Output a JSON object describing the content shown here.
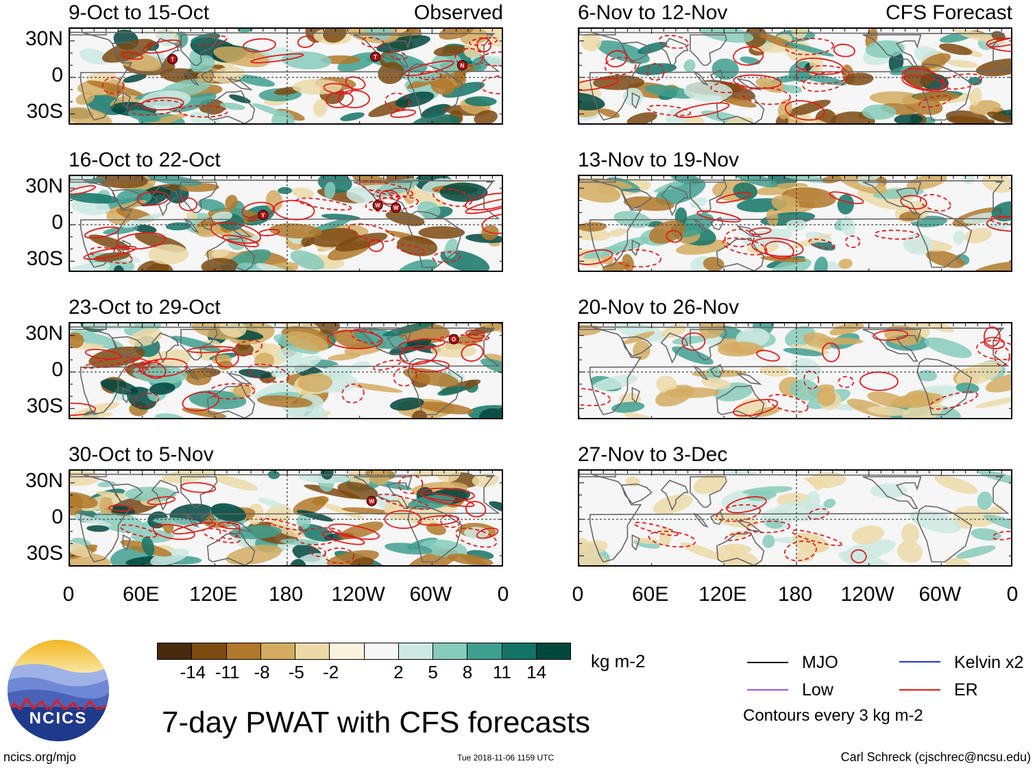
{
  "panels": [
    {
      "title": "9-Oct to 15-Oct",
      "tag": "Observed",
      "storms": [
        {
          "label": "T",
          "lon": 85,
          "lat": 15
        },
        {
          "label": "T",
          "lon": 253,
          "lat": 17
        },
        {
          "label": "N",
          "lon": 325,
          "lat": 10
        }
      ]
    },
    {
      "title": "16-Oct to 22-Oct",
      "tag": "",
      "storms": [
        {
          "label": "Y",
          "lon": 160,
          "lat": 8
        },
        {
          "label": "W",
          "lon": 255,
          "lat": 16
        },
        {
          "label": "W",
          "lon": 270,
          "lat": 14
        }
      ]
    },
    {
      "title": "23-Oct to 29-Oct",
      "tag": "",
      "storms": [
        {
          "label": "O",
          "lon": 318,
          "lat": 27
        }
      ]
    },
    {
      "title": "30-Oct to 5-Nov",
      "tag": "",
      "storms": [
        {
          "label": "W",
          "lon": 250,
          "lat": 15
        }
      ]
    },
    {
      "title": "6-Nov to 12-Nov",
      "tag": "CFS Forecast",
      "storms": []
    },
    {
      "title": "13-Nov to 19-Nov",
      "tag": "",
      "storms": []
    },
    {
      "title": "20-Nov to 26-Nov",
      "tag": "",
      "storms": []
    },
    {
      "title": "27-Nov to 3-Dec",
      "tag": "",
      "storms": []
    }
  ],
  "lat_labels": [
    "30N",
    "0",
    "30S"
  ],
  "lon_labels": [
    "0",
    "60E",
    "120E",
    "180",
    "120W",
    "60W",
    "0"
  ],
  "colorbar": {
    "colors": [
      "#4a2a0e",
      "#7d4a12",
      "#b0782a",
      "#d3ac62",
      "#ecd9a8",
      "#fbf3dd",
      "#f7f7f7",
      "#cde9e2",
      "#86cbbb",
      "#3f9f8f",
      "#137466",
      "#00473e"
    ],
    "ticks": [
      "-14",
      "-11",
      "-8",
      "-5",
      "-2",
      "2",
      "5",
      "8",
      "11",
      "14"
    ],
    "unit": "kg m-2"
  },
  "legend": {
    "items": [
      {
        "label": "MJO",
        "color": "#000000"
      },
      {
        "label": "Kelvin x2",
        "color": "#2233dd"
      },
      {
        "label": "Low",
        "color": "#a050e0"
      },
      {
        "label": "ER",
        "color": "#e11b1b"
      }
    ],
    "note": "Contours every 3 kg m-2"
  },
  "logo_text": "NCICS",
  "main_title": "7-day PWAT with CFS forecasts",
  "footer": {
    "left": "ncics.org/mjo",
    "center": "Tue 2018-11-06 1159 UTC",
    "right": "Carl Schreck (cjschrec@ncsu.edu)"
  }
}
